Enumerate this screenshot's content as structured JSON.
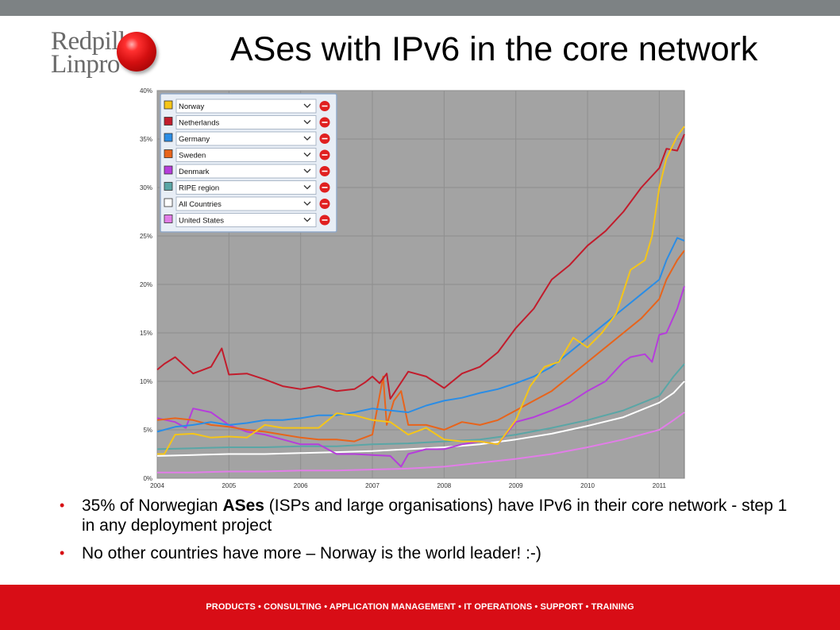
{
  "slide": {
    "title": "ASes with IPv6 in the core network",
    "logo_line1": "Redpill",
    "logo_line2": "Linpro",
    "bullets": [
      {
        "pre": "35% of Norwegian ",
        "bold": "ASes",
        "post": " (ISPs and large organisations) have IPv6 in their core network - step 1 in any deployment project"
      },
      {
        "pre": "No other countries have more – Norway is the world leader! :-)",
        "bold": "",
        "post": ""
      }
    ],
    "footer": "PRODUCTS • CONSULTING • APPLICATION MANAGEMENT • IT OPERATIONS • SUPPORT • TRAINING",
    "colors": {
      "footer": "#d80d16",
      "top_bar": "#7d8284",
      "bullet": "#d70f14"
    }
  },
  "chart_data": {
    "type": "line",
    "title": "",
    "xlabel": "",
    "ylabel": "",
    "xlim": [
      2004,
      2011.35
    ],
    "ylim": [
      0,
      40
    ],
    "x_ticks": [
      "2004",
      "2005",
      "2006",
      "2007",
      "2008",
      "2009",
      "2010",
      "2011"
    ],
    "y_ticks": [
      "0%",
      "5%",
      "10%",
      "15%",
      "20%",
      "25%",
      "30%",
      "35%",
      "40%"
    ],
    "grid": true,
    "legend_position": "top-left",
    "series": [
      {
        "name": "Norway",
        "color": "#f5c518",
        "x": [
          2004,
          2004.1,
          2004.25,
          2004.5,
          2004.75,
          2005,
          2005.25,
          2005.5,
          2005.75,
          2006,
          2006.25,
          2006.5,
          2006.75,
          2007,
          2007.25,
          2007.5,
          2007.75,
          2008,
          2008.25,
          2008.5,
          2008.75,
          2009,
          2009.2,
          2009.4,
          2009.6,
          2009.8,
          2010,
          2010.2,
          2010.4,
          2010.6,
          2010.8,
          2010.9,
          2011,
          2011.1,
          2011.25,
          2011.35
        ],
        "y": [
          2.5,
          2.5,
          4.5,
          4.6,
          4.2,
          4.3,
          4.2,
          5.5,
          5.2,
          5.2,
          5.2,
          6.7,
          6.5,
          6.0,
          5.8,
          4.5,
          5.2,
          4.0,
          3.8,
          3.8,
          3.5,
          6.0,
          9.5,
          11.5,
          12.0,
          14.5,
          13.5,
          15.0,
          17.0,
          21.5,
          22.5,
          25.0,
          30.0,
          33.0,
          35.3,
          36.3
        ]
      },
      {
        "name": "Netherlands",
        "color": "#c21c2c",
        "x": [
          2004,
          2004.1,
          2004.25,
          2004.5,
          2004.75,
          2004.9,
          2005,
          2005.25,
          2005.5,
          2005.75,
          2006,
          2006.25,
          2006.5,
          2006.75,
          2006.9,
          2007,
          2007.1,
          2007.2,
          2007.25,
          2007.5,
          2007.75,
          2008,
          2008.25,
          2008.5,
          2008.75,
          2009,
          2009.25,
          2009.5,
          2009.75,
          2010,
          2010.25,
          2010.5,
          2010.75,
          2011,
          2011.1,
          2011.25,
          2011.35
        ],
        "y": [
          11.2,
          11.8,
          12.5,
          10.8,
          11.5,
          13.4,
          10.7,
          10.8,
          10.2,
          9.5,
          9.2,
          9.5,
          9.0,
          9.2,
          9.9,
          10.5,
          9.8,
          10.8,
          8.2,
          11.0,
          10.5,
          9.3,
          10.8,
          11.5,
          13.0,
          15.5,
          17.5,
          20.5,
          22.0,
          24.0,
          25.5,
          27.5,
          30.0,
          32.0,
          34.0,
          33.8,
          35.5
        ]
      },
      {
        "name": "Germany",
        "color": "#2a8de6",
        "x": [
          2004,
          2004.25,
          2004.5,
          2004.75,
          2005,
          2005.25,
          2005.5,
          2005.75,
          2006,
          2006.25,
          2006.5,
          2006.75,
          2007,
          2007.25,
          2007.5,
          2007.75,
          2008,
          2008.25,
          2008.5,
          2008.75,
          2009,
          2009.25,
          2009.5,
          2009.75,
          2010,
          2010.25,
          2010.5,
          2010.75,
          2011,
          2011.1,
          2011.25,
          2011.35
        ],
        "y": [
          4.8,
          5.3,
          5.5,
          5.8,
          5.5,
          5.7,
          6.0,
          6.0,
          6.2,
          6.5,
          6.5,
          6.8,
          7.2,
          7.0,
          6.8,
          7.5,
          8.0,
          8.3,
          8.8,
          9.2,
          9.8,
          10.5,
          11.5,
          13.0,
          14.5,
          16.0,
          17.5,
          19.0,
          20.5,
          22.5,
          24.8,
          24.5
        ]
      },
      {
        "name": "Sweden",
        "color": "#e8641b",
        "x": [
          2004,
          2004.25,
          2004.5,
          2004.75,
          2005,
          2005.25,
          2005.5,
          2005.75,
          2006,
          2006.25,
          2006.5,
          2006.75,
          2007,
          2007.15,
          2007.2,
          2007.3,
          2007.4,
          2007.5,
          2007.75,
          2008,
          2008.25,
          2008.5,
          2008.75,
          2009,
          2009.25,
          2009.5,
          2009.75,
          2010,
          2010.25,
          2010.5,
          2010.75,
          2011,
          2011.1,
          2011.25,
          2011.35
        ],
        "y": [
          6.0,
          6.2,
          6.0,
          5.5,
          5.3,
          5.0,
          4.8,
          4.5,
          4.2,
          4.0,
          4.0,
          3.8,
          4.5,
          10.5,
          5.5,
          8.0,
          9.0,
          5.5,
          5.5,
          5.0,
          5.8,
          5.5,
          6.0,
          7.0,
          8.0,
          9.0,
          10.5,
          12.0,
          13.5,
          15.0,
          16.5,
          18.5,
          20.5,
          22.5,
          23.5
        ]
      },
      {
        "name": "Denmark",
        "color": "#b63ddc",
        "x": [
          2004,
          2004.25,
          2004.4,
          2004.5,
          2004.75,
          2005,
          2005.25,
          2005.5,
          2005.75,
          2006,
          2006.25,
          2006.5,
          2006.75,
          2007,
          2007.25,
          2007.4,
          2007.5,
          2007.75,
          2008,
          2008.25,
          2008.5,
          2008.75,
          2009,
          2009.25,
          2009.5,
          2009.75,
          2010,
          2010.25,
          2010.5,
          2010.6,
          2010.8,
          2010.9,
          2011,
          2011.1,
          2011.25,
          2011.35
        ],
        "y": [
          6.2,
          5.8,
          5.2,
          7.2,
          6.8,
          5.5,
          4.8,
          4.5,
          4.0,
          3.5,
          3.5,
          2.5,
          2.5,
          2.4,
          2.3,
          1.2,
          2.5,
          3.0,
          3.0,
          3.5,
          3.8,
          3.5,
          5.8,
          6.3,
          7.0,
          7.8,
          9.0,
          10.0,
          12.0,
          12.5,
          12.8,
          12.0,
          14.8,
          15.0,
          17.5,
          19.8
        ]
      },
      {
        "name": "RIPE region",
        "color": "#5aa6a6",
        "x": [
          2004,
          2004.5,
          2005,
          2005.5,
          2006,
          2006.5,
          2007,
          2007.5,
          2008,
          2008.5,
          2009,
          2009.5,
          2010,
          2010.5,
          2011,
          2011.2,
          2011.35
        ],
        "y": [
          3.0,
          3.1,
          3.2,
          3.2,
          3.3,
          3.3,
          3.5,
          3.6,
          3.8,
          4.0,
          4.5,
          5.2,
          6.0,
          7.0,
          8.5,
          10.5,
          11.8
        ]
      },
      {
        "name": "All Countries",
        "color": "#ffffff",
        "x": [
          2004,
          2004.5,
          2005,
          2005.5,
          2006,
          2006.5,
          2007,
          2007.5,
          2008,
          2008.5,
          2009,
          2009.5,
          2010,
          2010.5,
          2011,
          2011.2,
          2011.35
        ],
        "y": [
          2.3,
          2.4,
          2.5,
          2.5,
          2.6,
          2.7,
          2.8,
          3.0,
          3.2,
          3.5,
          4.0,
          4.6,
          5.4,
          6.3,
          7.8,
          8.8,
          10.0
        ]
      },
      {
        "name": "United States",
        "color": "#e27de8",
        "x": [
          2004,
          2004.5,
          2005,
          2005.5,
          2006,
          2006.5,
          2007,
          2007.5,
          2008,
          2008.5,
          2009,
          2009.5,
          2010,
          2010.5,
          2011,
          2011.2,
          2011.35
        ],
        "y": [
          0.6,
          0.6,
          0.7,
          0.7,
          0.8,
          0.8,
          0.9,
          1.0,
          1.2,
          1.6,
          2.0,
          2.5,
          3.2,
          4.0,
          5.0,
          6.0,
          6.8
        ]
      }
    ]
  }
}
